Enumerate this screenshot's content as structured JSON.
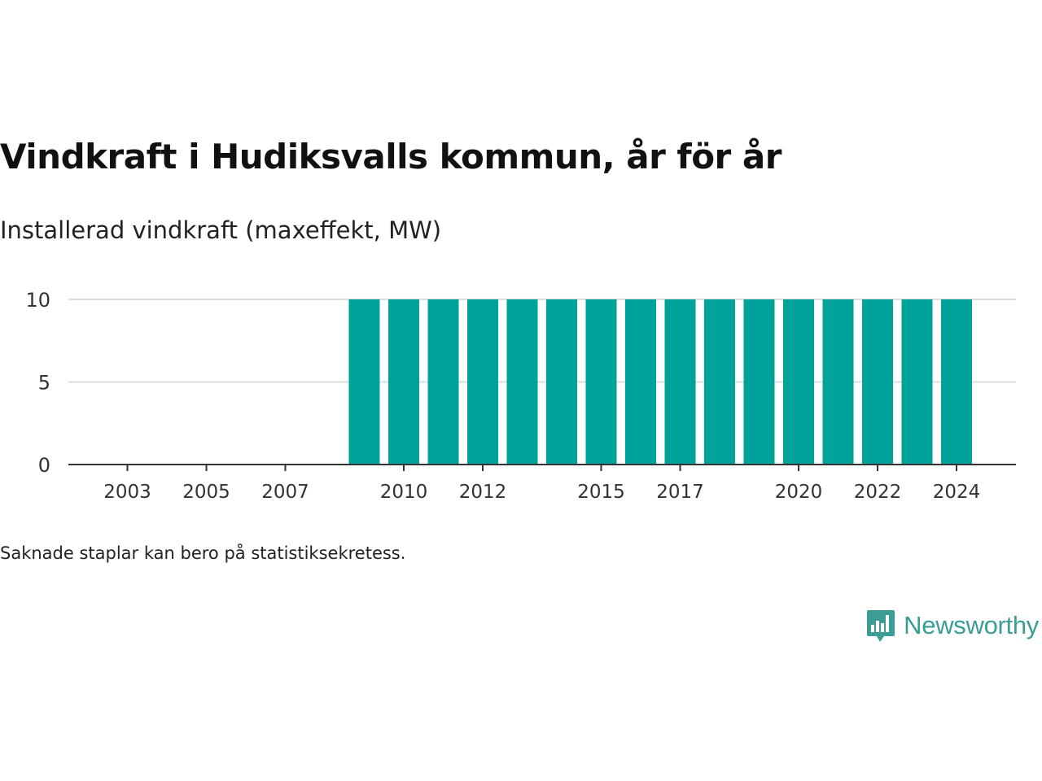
{
  "title": "Vindkraft i Hudiksvalls kommun, år för år",
  "subtitle": "Installerad vindkraft (maxeffekt, MW)",
  "note": "Saknade staplar kan bero på statistiksekretess.",
  "brand": {
    "name": "Newsworthy",
    "icon": "newsworthy-logo-icon",
    "color": "#3a9e96"
  },
  "chart_data": {
    "type": "bar",
    "categories": [
      "2003",
      "2004",
      "2005",
      "2006",
      "2007",
      "2008",
      "2009",
      "2010",
      "2011",
      "2012",
      "2013",
      "2014",
      "2015",
      "2016",
      "2017",
      "2018",
      "2019",
      "2020",
      "2021",
      "2022",
      "2023",
      "2024"
    ],
    "values": [
      null,
      null,
      null,
      null,
      null,
      null,
      10,
      10,
      10,
      10,
      10,
      10,
      10,
      10,
      10,
      10,
      10,
      10,
      10,
      10,
      10,
      10
    ],
    "x_tick_labels": [
      "2003",
      "2005",
      "2007",
      "2010",
      "2012",
      "2015",
      "2017",
      "2020",
      "2022",
      "2024"
    ],
    "y_ticks": [
      0,
      5,
      10
    ],
    "ylim": [
      0,
      10
    ],
    "grid": true,
    "bar_color": "#00a39a"
  }
}
